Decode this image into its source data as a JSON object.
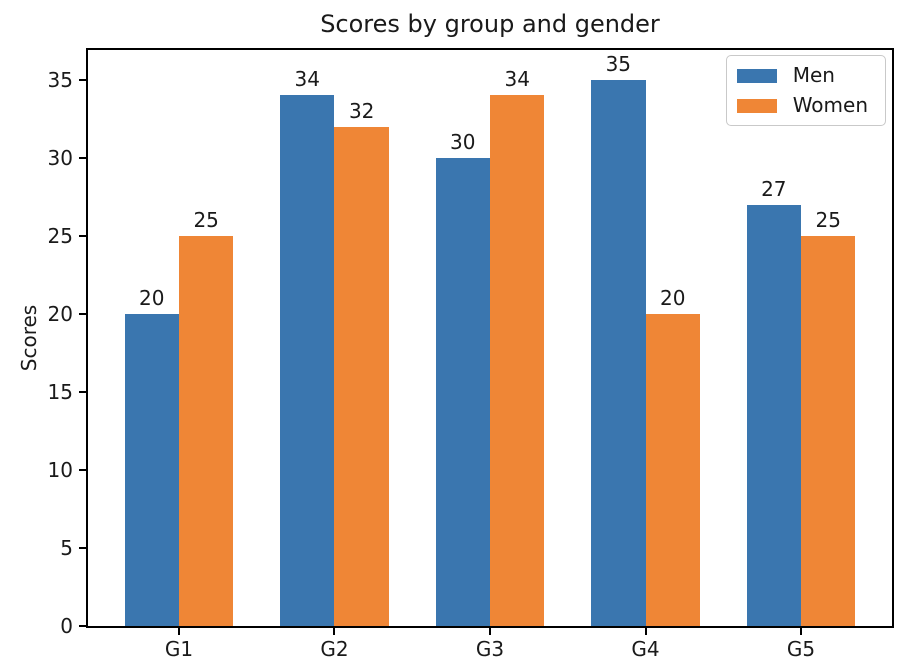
{
  "chart_data": {
    "type": "bar",
    "title": "Scores by group and gender",
    "xlabel": "",
    "ylabel": "Scores",
    "categories": [
      "G1",
      "G2",
      "G3",
      "G4",
      "G5"
    ],
    "series": [
      {
        "name": "Men",
        "color": "#3a76af",
        "values": [
          20,
          34,
          30,
          35,
          27
        ]
      },
      {
        "name": "Women",
        "color": "#ef8636",
        "values": [
          25,
          32,
          34,
          20,
          25
        ]
      }
    ],
    "bar_labels": true,
    "yticks": [
      0,
      5,
      10,
      15,
      20,
      25,
      30,
      35
    ],
    "ylim": [
      0,
      36.9
    ],
    "bar_width": 0.35,
    "x_edge_margin": 0.585,
    "grid": false,
    "legend_position": "upper right",
    "text_color": "#1a1a1a",
    "axis_color": "#000000"
  }
}
